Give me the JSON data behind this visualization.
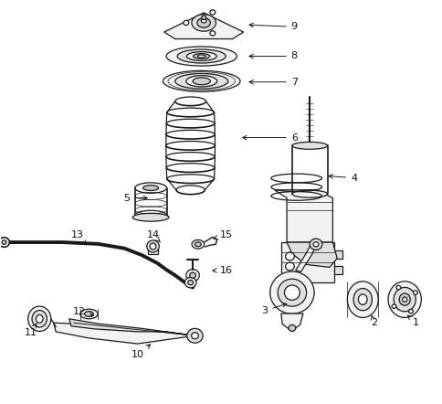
{
  "background_color": "#ffffff",
  "figsize": [
    4.85,
    4.42
  ],
  "dpi": 100,
  "line_color": "#1a1a1a",
  "label_fontsize": 8,
  "arrow_color": "#1a1a1a",
  "annotations": [
    [
      9,
      0.665,
      0.935,
      0.555,
      0.94
    ],
    [
      8,
      0.665,
      0.862,
      0.555,
      0.862
    ],
    [
      7,
      0.665,
      0.798,
      0.555,
      0.798
    ],
    [
      6,
      0.665,
      0.66,
      0.54,
      0.66
    ],
    [
      5,
      0.285,
      0.51,
      0.34,
      0.51
    ],
    [
      4,
      0.8,
      0.56,
      0.735,
      0.565
    ],
    [
      3,
      0.598,
      0.23,
      0.655,
      0.25
    ],
    [
      2,
      0.845,
      0.2,
      0.84,
      0.22
    ],
    [
      1,
      0.94,
      0.2,
      0.92,
      0.22
    ],
    [
      10,
      0.31,
      0.12,
      0.345,
      0.152
    ],
    [
      11,
      0.068,
      0.175,
      0.082,
      0.2
    ],
    [
      12,
      0.178,
      0.228,
      0.218,
      0.215
    ],
    [
      13,
      0.175,
      0.418,
      0.195,
      0.392
    ],
    [
      14,
      0.345,
      0.418,
      0.362,
      0.4
    ],
    [
      15,
      0.51,
      0.418,
      0.48,
      0.408
    ],
    [
      16,
      0.51,
      0.33,
      0.472,
      0.33
    ]
  ]
}
